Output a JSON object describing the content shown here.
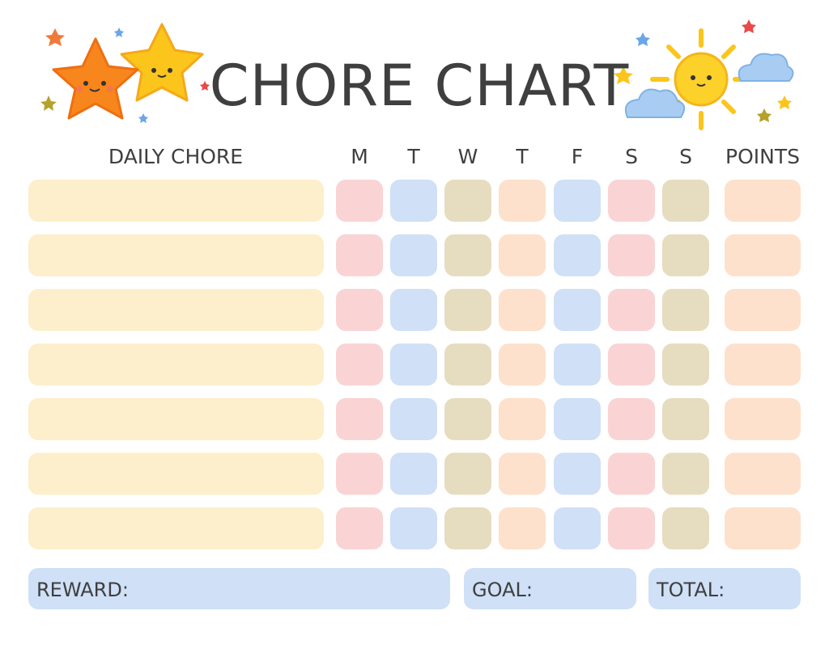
{
  "header": {
    "title": "CHORE CHART"
  },
  "table": {
    "columns": [
      "DAILY CHORE",
      "M",
      "T",
      "W",
      "T",
      "F",
      "S",
      "S",
      "POINTS"
    ]
  },
  "footer": {
    "fields": [
      "REWARD:",
      "GOAL:",
      "TOTAL:"
    ]
  }
}
